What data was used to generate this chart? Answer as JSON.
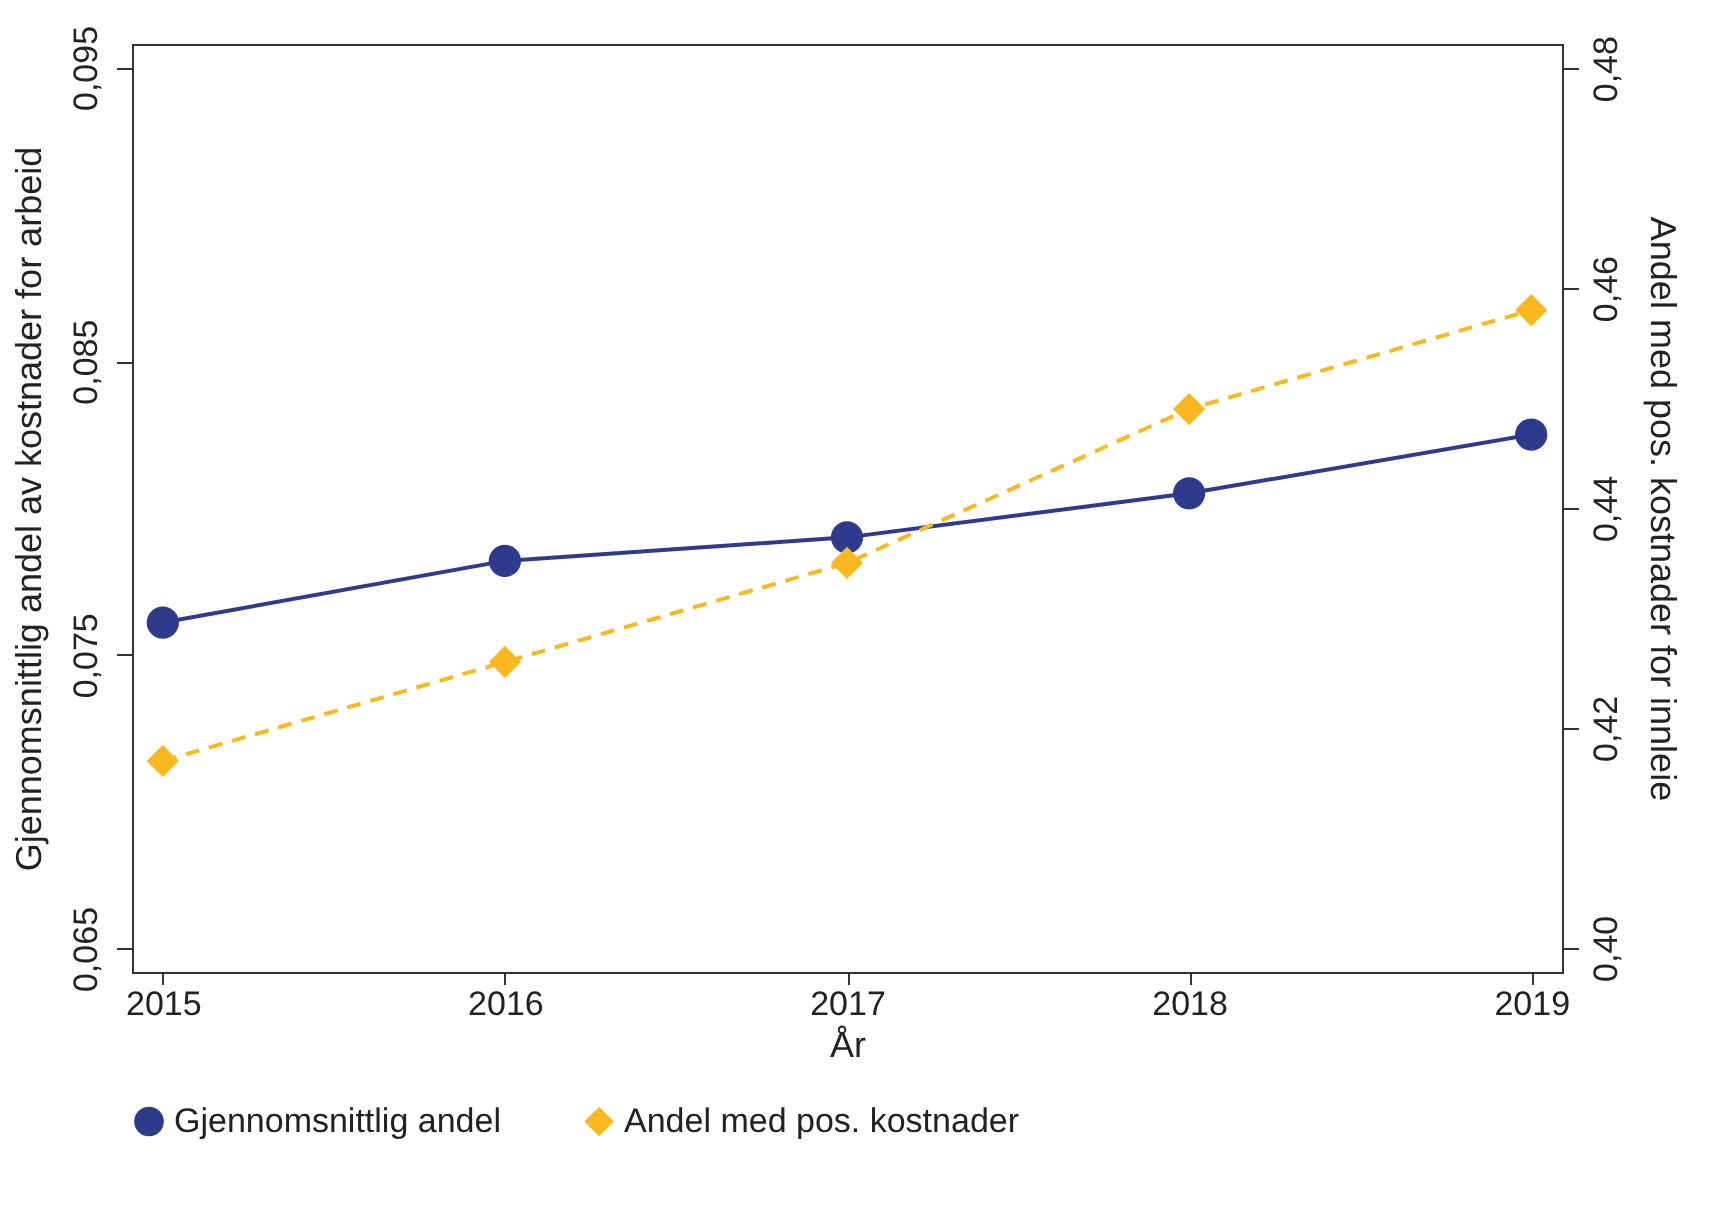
{
  "chart_data": {
    "type": "line",
    "xlabel": "År",
    "ylabel": "Gjennomsnittlig andel av kostnader for arbeid",
    "y2label": "Andel med pos. kostnader for innleie",
    "x": [
      2015,
      2016,
      2017,
      2018,
      2019
    ],
    "series": [
      {
        "name": "Gjennomsnittlig andel",
        "color": "#2e3b8c",
        "marker": "circle",
        "line_style": "solid",
        "values": [
          0.0761,
          0.0782,
          0.079,
          0.0805,
          0.0825
        ]
      },
      {
        "name": "Andel med pos. kostnader",
        "color": "#fbb81e",
        "marker": "diamond",
        "line_style": "dashed",
        "axis": "y2",
        "values": [
          0.417,
          0.426,
          0.435,
          0.449,
          0.458
        ]
      }
    ],
    "xlim": [
      2014.91,
      2019.09
    ],
    "xticks": [
      2015,
      2016,
      2017,
      2018,
      2019
    ],
    "ylim": [
      0.0642,
      0.0958
    ],
    "yticks": [
      {
        "value": 0.065,
        "label": "0,065"
      },
      {
        "value": 0.075,
        "label": "0,075"
      },
      {
        "value": 0.085,
        "label": "0,085"
      },
      {
        "value": 0.095,
        "label": "0,095"
      }
    ],
    "y2lim": [
      0.3978,
      0.4822
    ],
    "y2ticks": [
      {
        "value": 0.4,
        "label": "0,40"
      },
      {
        "value": 0.42,
        "label": "0,42"
      },
      {
        "value": 0.44,
        "label": "0,44"
      },
      {
        "value": 0.46,
        "label": "0,46"
      },
      {
        "value": 0.48,
        "label": "0,48"
      }
    ],
    "grid": false,
    "legend": "bottom"
  }
}
